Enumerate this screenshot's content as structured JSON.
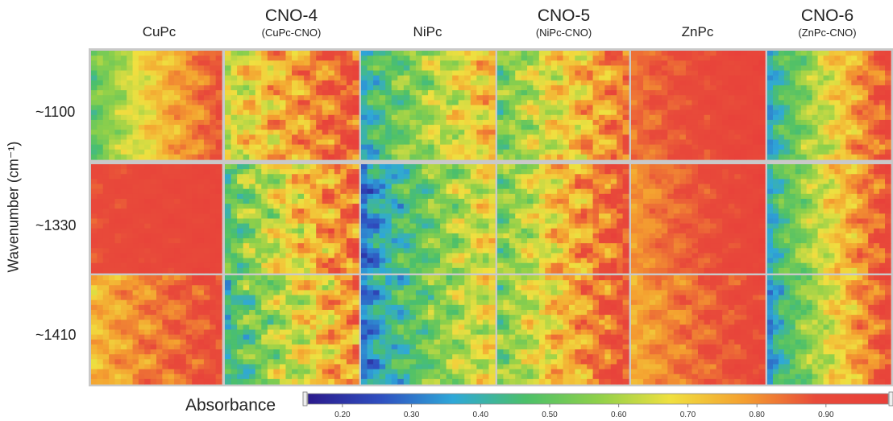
{
  "chart_data": {
    "type": "heatmap",
    "columns": [
      {
        "label": "CuPc",
        "sublabel": ""
      },
      {
        "label": "CNO-4",
        "sublabel": "(CuPc-CNO)"
      },
      {
        "label": "NiPc",
        "sublabel": ""
      },
      {
        "label": "CNO-5",
        "sublabel": "(NiPc-CNO)"
      },
      {
        "label": "ZnPc",
        "sublabel": ""
      },
      {
        "label": "CNO-6",
        "sublabel": "(ZnPc-CNO)"
      }
    ],
    "rows": [
      "~1100",
      "~1330",
      "~1410"
    ],
    "ylabel": "Wavenumber (cm⁻¹)",
    "colorbar": {
      "title": "Absorbance",
      "range": [
        0.15,
        0.99
      ],
      "ticks": [
        "0.20",
        "0.30",
        "0.40",
        "0.50",
        "0.60",
        "0.70",
        "0.80",
        "0.90"
      ],
      "colors": [
        "#2b1a8c",
        "#2f4fc0",
        "#2fa8d8",
        "#4cc06a",
        "#8fd04a",
        "#f0e040",
        "#f4a030",
        "#e84a3a",
        "#e8403a"
      ]
    },
    "maps": [
      [
        {
          "base": 0.65,
          "left": 0.45,
          "right": 0.95,
          "noise": 0.06
        },
        {
          "base": 0.7,
          "left": 0.6,
          "right": 0.94,
          "noise": 0.1
        },
        {
          "base": 0.55,
          "left": 0.35,
          "right": 0.8,
          "noise": 0.1
        },
        {
          "base": 0.62,
          "left": 0.48,
          "right": 0.9,
          "noise": 0.1
        },
        {
          "base": 0.92,
          "left": 0.8,
          "right": 0.95,
          "noise": 0.04
        },
        {
          "base": 0.7,
          "left": 0.25,
          "right": 0.95,
          "noise": 0.08
        }
      ],
      [
        {
          "base": 0.9,
          "left": 0.88,
          "right": 0.94,
          "noise": 0.03
        },
        {
          "base": 0.68,
          "left": 0.4,
          "right": 0.9,
          "noise": 0.12
        },
        {
          "base": 0.58,
          "left": 0.2,
          "right": 0.72,
          "noise": 0.1
        },
        {
          "base": 0.72,
          "left": 0.45,
          "right": 0.94,
          "noise": 0.1
        },
        {
          "base": 0.9,
          "left": 0.75,
          "right": 0.95,
          "noise": 0.04
        },
        {
          "base": 0.7,
          "left": 0.28,
          "right": 0.95,
          "noise": 0.08
        }
      ],
      [
        {
          "base": 0.82,
          "left": 0.7,
          "right": 0.92,
          "noise": 0.06
        },
        {
          "base": 0.62,
          "left": 0.35,
          "right": 0.85,
          "noise": 0.12
        },
        {
          "base": 0.56,
          "left": 0.22,
          "right": 0.72,
          "noise": 0.1
        },
        {
          "base": 0.74,
          "left": 0.45,
          "right": 0.94,
          "noise": 0.1
        },
        {
          "base": 0.86,
          "left": 0.72,
          "right": 0.93,
          "noise": 0.05
        },
        {
          "base": 0.7,
          "left": 0.22,
          "right": 0.95,
          "noise": 0.08
        }
      ]
    ]
  }
}
